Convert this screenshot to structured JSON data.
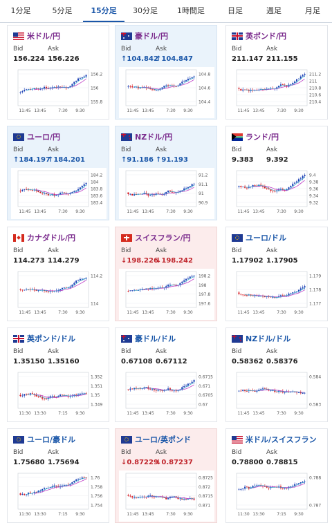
{
  "tabs": [
    {
      "label": "1分足",
      "active": false
    },
    {
      "label": "5分足",
      "active": false
    },
    {
      "label": "15分足",
      "active": true
    },
    {
      "label": "30分足",
      "active": false
    },
    {
      "label": "1時間足",
      "active": false
    },
    {
      "label": "日足",
      "active": false
    },
    {
      "label": "週足",
      "active": false
    },
    {
      "label": "月足",
      "active": false
    }
  ],
  "labels": {
    "bid": "Bid",
    "ask": "Ask"
  },
  "cards": [
    {
      "pair": "米ドル/円",
      "flag": "us",
      "jpy": true,
      "state": "none",
      "bid": "156.224",
      "ask": "156.226",
      "yticks": [
        "156.2",
        "156",
        "155.8"
      ],
      "xticks": [
        "11:45",
        "13:45",
        "7:30",
        "9:30"
      ]
    },
    {
      "pair": "豪ドル/円",
      "flag": "au",
      "jpy": true,
      "state": "up",
      "bid": "↑104.842",
      "ask": "↑104.847",
      "yticks": [
        "104.8",
        "104.6",
        "104.4"
      ],
      "xticks": [
        "11:45",
        "13:45",
        "7:30",
        "9:30"
      ]
    },
    {
      "pair": "英ポンド/円",
      "flag": "gb",
      "jpy": true,
      "state": "none",
      "bid": "211.147",
      "ask": "211.155",
      "yticks": [
        "211.2",
        "211",
        "210.8",
        "210.6",
        "210.4"
      ],
      "xticks": [
        "11:45",
        "13:45",
        "7:30",
        "9:30"
      ]
    },
    {
      "pair": "ユーロ/円",
      "flag": "eu",
      "jpy": true,
      "state": "up",
      "bid": "↑184.197",
      "ask": "↑184.201",
      "yticks": [
        "184.2",
        "184",
        "183.8",
        "183.6",
        "183.4"
      ],
      "xticks": [
        "11:45",
        "13:45",
        "7:30",
        "9:30"
      ]
    },
    {
      "pair": "NZドル/円",
      "flag": "nz",
      "jpy": true,
      "state": "up",
      "bid": "↑91.186",
      "ask": "↑91.193",
      "yticks": [
        "91.2",
        "91.1",
        "91",
        "90.9"
      ],
      "xticks": [
        "11:45",
        "13:45",
        "7:30",
        "9:30"
      ]
    },
    {
      "pair": "ランド/円",
      "flag": "za",
      "jpy": true,
      "state": "none",
      "bid": "9.383",
      "ask": "9.392",
      "yticks": [
        "9.4",
        "9.38",
        "9.36",
        "9.34",
        "9.32"
      ],
      "xticks": [
        "11:45",
        "13:45",
        "7:30",
        "9:30"
      ]
    },
    {
      "pair": "カナダドル/円",
      "flag": "ca",
      "jpy": true,
      "state": "none",
      "bid": "114.273",
      "ask": "114.279",
      "yticks": [
        "114.2",
        "114"
      ],
      "xticks": [
        "11:45",
        "13:45",
        "7:30",
        "9:30"
      ]
    },
    {
      "pair": "スイスフラン/円",
      "flag": "ch",
      "jpy": true,
      "state": "down",
      "bid": "↓198.226",
      "ask": "↓198.242",
      "yticks": [
        "198.2",
        "198",
        "197.8",
        "197.6"
      ],
      "xticks": [
        "11:45",
        "13:45",
        "7:30",
        "9:30"
      ]
    },
    {
      "pair": "ユーロ/ドル",
      "flag": "eu",
      "jpy": false,
      "state": "none",
      "bid": "1.17902",
      "ask": "1.17905",
      "yticks": [
        "1.179",
        "1.178",
        "1.177"
      ],
      "xticks": [
        "11:45",
        "13:45",
        "7:30",
        "9:30"
      ]
    },
    {
      "pair": "英ポンド/ドル",
      "flag": "gb",
      "jpy": false,
      "state": "none",
      "bid": "1.35150",
      "ask": "1.35160",
      "yticks": [
        "1.352",
        "1.351",
        "1.35",
        "1.349"
      ],
      "xticks": [
        "11:30",
        "13:30",
        "7:15",
        "9:30"
      ]
    },
    {
      "pair": "豪ドル/ドル",
      "flag": "au",
      "jpy": false,
      "state": "none",
      "bid": "0.67108",
      "ask": "0.67112",
      "yticks": [
        "0.6715",
        "0.671",
        "0.6705",
        "0.67"
      ],
      "xticks": [
        "11:45",
        "13:45",
        "7:30",
        "9:30"
      ]
    },
    {
      "pair": "NZドル/ドル",
      "flag": "nz",
      "jpy": false,
      "state": "none",
      "bid": "0.58362",
      "ask": "0.58376",
      "yticks": [
        "0.584",
        "0.583"
      ],
      "xticks": [
        "11:45",
        "13:45",
        "7:30",
        "9:30"
      ]
    },
    {
      "pair": "ユーロ/豪ドル",
      "flag": "eu",
      "jpy": false,
      "state": "none",
      "bid": "1.75680",
      "ask": "1.75694",
      "yticks": [
        "1.76",
        "1.758",
        "1.756",
        "1.754"
      ],
      "xticks": [
        "11:30",
        "13:30",
        "7:15",
        "9:30"
      ]
    },
    {
      "pair": "ユーロ/英ポンド",
      "flag": "eu",
      "jpy": false,
      "state": "down",
      "bid": "↓0.87229",
      "ask": "↓0.87237",
      "yticks": [
        "0.8725",
        "0.872",
        "0.8715",
        "0.871"
      ],
      "xticks": [
        "11:45",
        "13:45",
        "7:30",
        "9:30"
      ]
    },
    {
      "pair": "米ドル/スイスフラン",
      "flag": "us",
      "jpy": false,
      "state": "none",
      "bid": "0.78800",
      "ask": "0.78815",
      "yticks": [
        "0.788",
        "0.787"
      ],
      "xticks": [
        "11:30",
        "13:30",
        "7:15",
        "9:30"
      ]
    }
  ],
  "colors": {
    "up_candle": "#1a3fb5",
    "down_candle": "#d4121a",
    "ma_line": "#c03fc6",
    "ma_line2": "#29a8c8",
    "accent": "#1a56a8"
  }
}
